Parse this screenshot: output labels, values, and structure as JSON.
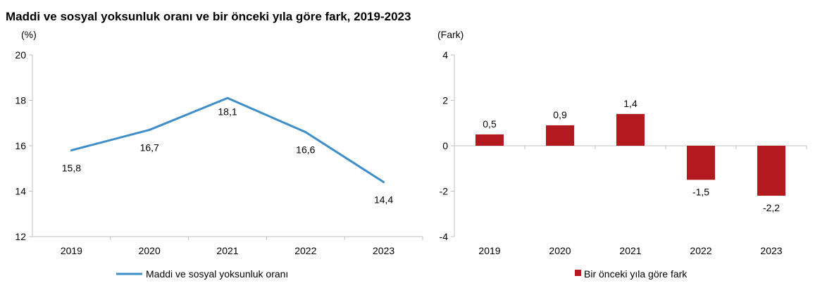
{
  "title": "Maddi ve sosyal yoksunluk oranı ve bir önceki yıla göre fark, 2019-2023",
  "colors": {
    "line": "#3d8ec9",
    "bar": "#b21a1f",
    "axis": "#bfbfbf"
  },
  "chart_data": [
    {
      "type": "line",
      "unit_label": "(%)",
      "categories": [
        "2019",
        "2020",
        "2021",
        "2022",
        "2023"
      ],
      "series": [
        {
          "name": "Maddi ve sosyal yoksunluk oranı",
          "values": [
            15.8,
            16.7,
            18.1,
            16.6,
            14.4
          ],
          "labels": [
            "15,8",
            "16,7",
            "18,1",
            "16,6",
            "14,4"
          ]
        }
      ],
      "ylim": [
        12,
        20
      ],
      "yticks": [
        12,
        14,
        16,
        18,
        20
      ],
      "ytick_labels": [
        "12",
        "14",
        "16",
        "18",
        "20"
      ],
      "legend": "bottom",
      "grid": false
    },
    {
      "type": "bar",
      "unit_label": "(Fark)",
      "categories": [
        "2019",
        "2020",
        "2021",
        "2022",
        "2023"
      ],
      "series": [
        {
          "name": "Bir önceki yıla göre fark",
          "values": [
            0.5,
            0.9,
            1.4,
            -1.5,
            -2.2
          ],
          "labels": [
            "0,5",
            "0,9",
            "1,4",
            "-1,5",
            "-2,2"
          ]
        }
      ],
      "ylim": [
        -4,
        4
      ],
      "yticks": [
        -4,
        -2,
        0,
        2,
        4
      ],
      "ytick_labels": [
        "-4",
        "-2",
        "0",
        "2",
        "4"
      ],
      "legend": "bottom",
      "grid": false
    }
  ]
}
